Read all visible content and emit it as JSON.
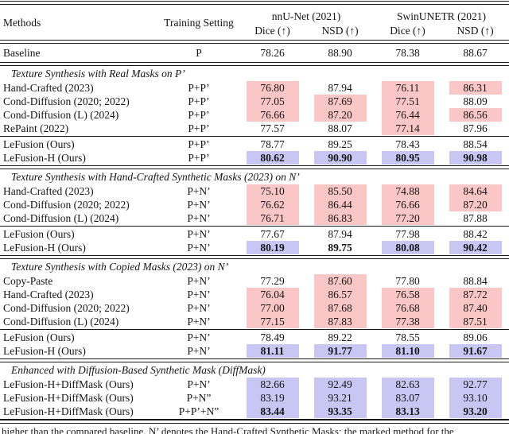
{
  "colors": {
    "pink_highlight": "#FAC7C6",
    "blue_highlight": "#C8C7F4"
  },
  "table": {
    "header": {
      "methods": "Methods",
      "training": "Training Setting",
      "group1": "nnU-Net (2021)",
      "group2": "SwinUNETR (2021)",
      "sub": [
        "Dice (↑)",
        "NSD (↑)",
        "Dice (↑)",
        "NSD (↑)"
      ]
    },
    "sections": [
      {
        "title": null,
        "groups": [
          {
            "rows": [
              {
                "method": "Baseline",
                "training": "P",
                "tall": true,
                "cells": [
                  {
                    "v": "78.26"
                  },
                  {
                    "v": "88.90"
                  },
                  {
                    "v": "78.38"
                  },
                  {
                    "v": "88.67"
                  }
                ]
              }
            ]
          }
        ]
      },
      {
        "title": "Texture Synthesis with Real Masks on P’",
        "groups": [
          {
            "rows": [
              {
                "method": "Hand-Crafted (2023)",
                "training": "P+P’",
                "cells": [
                  {
                    "v": "76.80",
                    "hl": "pink"
                  },
                  {
                    "v": "87.94"
                  },
                  {
                    "v": "76.11",
                    "hl": "pink"
                  },
                  {
                    "v": "86.31",
                    "hl": "pink"
                  }
                ]
              },
              {
                "method": "Cond-Diffusion (2020; 2022)",
                "training": "P+P’",
                "cells": [
                  {
                    "v": "77.05",
                    "hl": "pink"
                  },
                  {
                    "v": "87.69",
                    "hl": "pink"
                  },
                  {
                    "v": "77.51",
                    "hl": "pink"
                  },
                  {
                    "v": "88.09"
                  }
                ]
              },
              {
                "method": "Cond-Diffusion (L) (2024)",
                "training": "P+P’",
                "cells": [
                  {
                    "v": "76.66",
                    "hl": "pink"
                  },
                  {
                    "v": "87.20",
                    "hl": "pink"
                  },
                  {
                    "v": "76.44",
                    "hl": "pink"
                  },
                  {
                    "v": "86.56",
                    "hl": "pink"
                  }
                ]
              },
              {
                "method": "RePaint (2022)",
                "training": "P+P’",
                "cells": [
                  {
                    "v": "77.57"
                  },
                  {
                    "v": "88.07"
                  },
                  {
                    "v": "77.14",
                    "hl": "pink"
                  },
                  {
                    "v": "87.96"
                  }
                ]
              }
            ]
          },
          {
            "rows": [
              {
                "method": "LeFusion (Ours)",
                "training": "P+P’",
                "cells": [
                  {
                    "v": "78.77"
                  },
                  {
                    "v": "89.25"
                  },
                  {
                    "v": "78.43"
                  },
                  {
                    "v": "88.54"
                  }
                ]
              },
              {
                "method": "LeFusion-H (Ours)",
                "training": "P+P’",
                "cells": [
                  {
                    "v": "80.62",
                    "hl": "blue",
                    "b": true
                  },
                  {
                    "v": "90.90",
                    "hl": "blue",
                    "b": true
                  },
                  {
                    "v": "80.95",
                    "hl": "blue",
                    "b": true
                  },
                  {
                    "v": "90.98",
                    "hl": "blue",
                    "b": true
                  }
                ]
              }
            ]
          }
        ]
      },
      {
        "title": "Texture Synthesis with Hand-Crafted Synthetic Masks (2023) on N’",
        "groups": [
          {
            "rows": [
              {
                "method": "Hand-Crafted (2023)",
                "training": "P+N’",
                "cells": [
                  {
                    "v": "75.10",
                    "hl": "pink"
                  },
                  {
                    "v": "85.50",
                    "hl": "pink"
                  },
                  {
                    "v": "74.88",
                    "hl": "pink"
                  },
                  {
                    "v": "84.64",
                    "hl": "pink"
                  }
                ]
              },
              {
                "method": "Cond-Diffusion (2020; 2022)",
                "training": "P+N’",
                "cells": [
                  {
                    "v": "76.62",
                    "hl": "pink"
                  },
                  {
                    "v": "86.44",
                    "hl": "pink"
                  },
                  {
                    "v": "76.66",
                    "hl": "pink"
                  },
                  {
                    "v": "87.20",
                    "hl": "pink"
                  }
                ]
              },
              {
                "method": "Cond-Diffusion (L) (2024)",
                "training": "P+N’",
                "cells": [
                  {
                    "v": "76.71",
                    "hl": "pink"
                  },
                  {
                    "v": "86.83",
                    "hl": "pink"
                  },
                  {
                    "v": "77.20",
                    "hl": "pink"
                  },
                  {
                    "v": "87.88"
                  }
                ]
              }
            ]
          },
          {
            "rows": [
              {
                "method": "LeFusion (Ours)",
                "training": "P+N’",
                "cells": [
                  {
                    "v": "77.67"
                  },
                  {
                    "v": "87.94"
                  },
                  {
                    "v": "77.98"
                  },
                  {
                    "v": "88.42"
                  }
                ]
              },
              {
                "method": "LeFusion-H (Ours)",
                "training": "P+N’",
                "cells": [
                  {
                    "v": "80.19",
                    "hl": "blue",
                    "b": true
                  },
                  {
                    "v": "89.75",
                    "b": true
                  },
                  {
                    "v": "80.08",
                    "hl": "blue",
                    "b": true
                  },
                  {
                    "v": "90.42",
                    "hl": "blue",
                    "b": true
                  }
                ]
              }
            ]
          }
        ]
      },
      {
        "title": "Texture Synthesis with Copied Masks (2023) on N’",
        "groups": [
          {
            "rows": [
              {
                "method": "Copy-Paste",
                "training": "P+N’",
                "cells": [
                  {
                    "v": "77.29"
                  },
                  {
                    "v": "87.60",
                    "hl": "pink"
                  },
                  {
                    "v": "77.80"
                  },
                  {
                    "v": "88.84"
                  }
                ]
              },
              {
                "method": "Hand-Crafted (2023)",
                "training": "P+N’",
                "cells": [
                  {
                    "v": "76.04",
                    "hl": "pink"
                  },
                  {
                    "v": "86.57",
                    "hl": "pink"
                  },
                  {
                    "v": "76.58",
                    "hl": "pink"
                  },
                  {
                    "v": "87.72",
                    "hl": "pink"
                  }
                ]
              },
              {
                "method": "Cond-Diffusion (2020; 2022)",
                "training": "P+N’",
                "cells": [
                  {
                    "v": "77.00",
                    "hl": "pink"
                  },
                  {
                    "v": "87.68",
                    "hl": "pink"
                  },
                  {
                    "v": "76.68",
                    "hl": "pink"
                  },
                  {
                    "v": "87.40",
                    "hl": "pink"
                  }
                ]
              },
              {
                "method": "Cond-Diffusion (L) (2024)",
                "training": "P+N’",
                "cells": [
                  {
                    "v": "77.15",
                    "hl": "pink"
                  },
                  {
                    "v": "87.83",
                    "hl": "pink"
                  },
                  {
                    "v": "77.38",
                    "hl": "pink"
                  },
                  {
                    "v": "87.51",
                    "hl": "pink"
                  }
                ]
              }
            ]
          },
          {
            "rows": [
              {
                "method": "LeFusion (Ours)",
                "training": "P+N’",
                "cells": [
                  {
                    "v": "78.49"
                  },
                  {
                    "v": "89.22"
                  },
                  {
                    "v": "78.55"
                  },
                  {
                    "v": "89.06"
                  }
                ]
              },
              {
                "method": "LeFusion-H (Ours)",
                "training": "P+N’",
                "cells": [
                  {
                    "v": "81.11",
                    "hl": "blue",
                    "b": true
                  },
                  {
                    "v": "91.77",
                    "hl": "blue",
                    "b": true
                  },
                  {
                    "v": "81.10",
                    "hl": "blue",
                    "b": true
                  },
                  {
                    "v": "91.67",
                    "hl": "blue",
                    "b": true
                  }
                ]
              }
            ]
          }
        ]
      },
      {
        "title": "Enhanced with Diffusion-Based Synthetic Mask (DiffMask)",
        "heavy_rule": true,
        "groups": [
          {
            "rows": [
              {
                "method": "LeFusion-H+DiffMask (Ours)",
                "training": "P+N’",
                "cells": [
                  {
                    "v": "82.66",
                    "hl": "blue"
                  },
                  {
                    "v": "92.49",
                    "hl": "blue"
                  },
                  {
                    "v": "82.63",
                    "hl": "blue"
                  },
                  {
                    "v": "92.77",
                    "hl": "blue"
                  }
                ]
              },
              {
                "method": "LeFusion-H+DiffMask (Ours)",
                "training": "P+N”",
                "cells": [
                  {
                    "v": "83.19",
                    "hl": "blue"
                  },
                  {
                    "v": "93.21",
                    "hl": "blue"
                  },
                  {
                    "v": "83.07",
                    "hl": "blue"
                  },
                  {
                    "v": "93.10",
                    "hl": "blue"
                  }
                ]
              },
              {
                "method": "LeFusion-H+DiffMask (Ours)",
                "training": "P+P’+N”",
                "cells": [
                  {
                    "v": "83.44",
                    "hl": "blue",
                    "b": true
                  },
                  {
                    "v": "93.35",
                    "hl": "blue",
                    "b": true
                  },
                  {
                    "v": "83.13",
                    "hl": "blue",
                    "b": true
                  },
                  {
                    "v": "93.20",
                    "hl": "blue",
                    "b": true
                  }
                ]
              }
            ]
          }
        ]
      }
    ],
    "caption_partial": "higher than the compared baseline. N’ denotes the Hand-Crafted Synthetic Masks; the marked method for the"
  }
}
